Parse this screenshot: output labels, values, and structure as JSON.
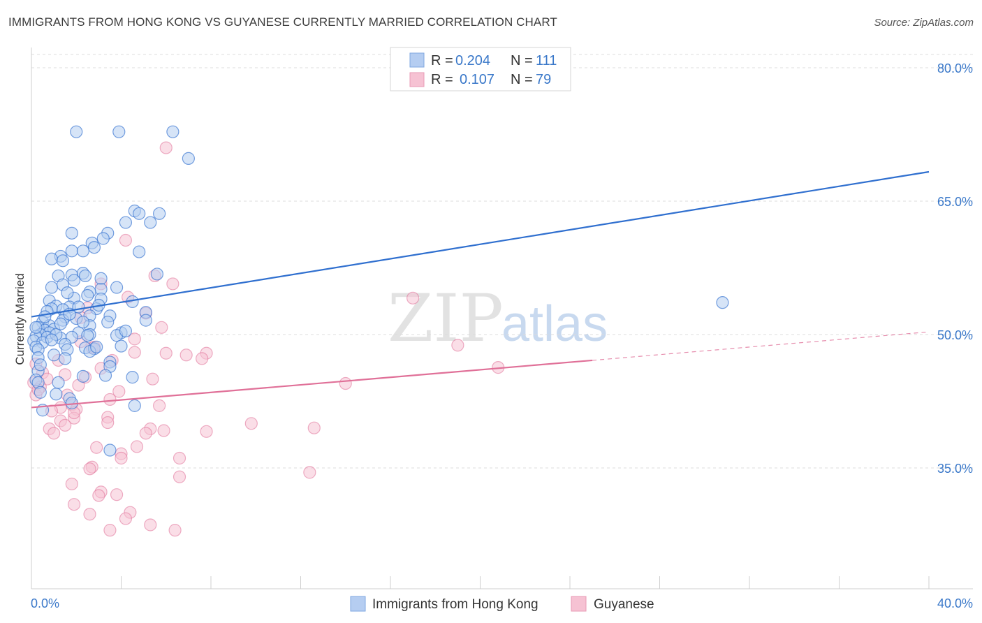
{
  "header": {
    "title": "IMMIGRANTS FROM HONG KONG VS GUYANESE CURRENTLY MARRIED CORRELATION CHART",
    "source": "Source: ZipAtlas.com"
  },
  "watermark": {
    "zip": "ZIP",
    "atlas": "atlas"
  },
  "chart_data": {
    "type": "scatter",
    "ylabel": "Currently Married",
    "xlim": [
      0,
      40
    ],
    "ylim": [
      20,
      80
    ],
    "x_tick_labels": [
      "0.0%",
      "40.0%"
    ],
    "y_ticks": [
      35,
      50,
      65,
      80
    ],
    "y_tick_labels": [
      "35.0%",
      "50.0%",
      "65.0%",
      "80.0%"
    ],
    "grid": true,
    "legend_position": "top-center",
    "colors": {
      "hong_kong": "#2f6fcf",
      "guyanese": "#e07098",
      "hk_fill": "#b5cdf1",
      "guy_fill": "#f6c2d3"
    },
    "stats": [
      {
        "r_label": "R =",
        "r_value": "0.204",
        "n_label": "N =",
        "n_value": "111"
      },
      {
        "r_label": "R =",
        "r_value": "0.107",
        "n_label": "N =",
        "n_value": "79"
      }
    ],
    "series": [
      {
        "name": "Immigrants from Hong Kong",
        "trend": {
          "x": [
            0,
            40
          ],
          "y": [
            52.0,
            68.3
          ]
        },
        "points": [
          [
            2.0,
            72.8
          ],
          [
            3.9,
            72.8
          ],
          [
            6.3,
            72.8
          ],
          [
            7.0,
            69.8
          ],
          [
            4.6,
            63.9
          ],
          [
            4.2,
            62.6
          ],
          [
            5.3,
            62.6
          ],
          [
            4.8,
            63.6
          ],
          [
            5.7,
            63.6
          ],
          [
            1.8,
            61.4
          ],
          [
            3.4,
            61.4
          ],
          [
            3.2,
            60.8
          ],
          [
            2.7,
            60.3
          ],
          [
            2.8,
            59.8
          ],
          [
            1.8,
            59.4
          ],
          [
            2.3,
            59.4
          ],
          [
            4.8,
            59.3
          ],
          [
            1.3,
            58.8
          ],
          [
            0.9,
            58.5
          ],
          [
            1.4,
            58.3
          ],
          [
            2.3,
            56.9
          ],
          [
            1.8,
            56.7
          ],
          [
            1.2,
            56.6
          ],
          [
            5.6,
            56.8
          ],
          [
            2.4,
            56.6
          ],
          [
            3.1,
            56.3
          ],
          [
            1.4,
            55.6
          ],
          [
            0.9,
            55.3
          ],
          [
            3.1,
            55.1
          ],
          [
            2.6,
            54.8
          ],
          [
            2.5,
            54.4
          ],
          [
            1.9,
            54.1
          ],
          [
            3.1,
            54.0
          ],
          [
            0.8,
            53.8
          ],
          [
            4.5,
            53.7
          ],
          [
            1.1,
            53.2
          ],
          [
            1.7,
            53.1
          ],
          [
            0.9,
            52.9
          ],
          [
            1.4,
            52.8
          ],
          [
            2.9,
            52.9
          ],
          [
            3.5,
            52.1
          ],
          [
            2.6,
            52.1
          ],
          [
            5.1,
            52.5
          ],
          [
            0.7,
            52.6
          ],
          [
            1.5,
            52.0
          ],
          [
            2.0,
            51.8
          ],
          [
            1.4,
            51.6
          ],
          [
            5.1,
            51.6
          ],
          [
            3.4,
            51.4
          ],
          [
            0.5,
            51.4
          ],
          [
            0.8,
            51.0
          ],
          [
            2.6,
            51.0
          ],
          [
            0.3,
            50.8
          ],
          [
            0.6,
            50.5
          ],
          [
            1.0,
            50.6
          ],
          [
            0.8,
            50.2
          ],
          [
            2.1,
            50.2
          ],
          [
            0.4,
            50.0
          ],
          [
            2.6,
            50.0
          ],
          [
            4.0,
            50.2
          ],
          [
            0.2,
            49.8
          ],
          [
            0.7,
            49.7
          ],
          [
            1.3,
            49.6
          ],
          [
            1.8,
            49.7
          ],
          [
            3.8,
            49.9
          ],
          [
            0.1,
            49.3
          ],
          [
            0.5,
            49.1
          ],
          [
            1.5,
            48.9
          ],
          [
            2.4,
            48.5
          ],
          [
            2.8,
            48.4
          ],
          [
            4.0,
            48.7
          ],
          [
            0.2,
            48.6
          ],
          [
            0.3,
            48.3
          ],
          [
            1.6,
            48.3
          ],
          [
            2.6,
            48.1
          ],
          [
            1.0,
            47.7
          ],
          [
            0.3,
            47.4
          ],
          [
            1.5,
            47.3
          ],
          [
            3.5,
            46.9
          ],
          [
            3.5,
            46.4
          ],
          [
            0.3,
            45.9
          ],
          [
            2.3,
            45.3
          ],
          [
            3.3,
            45.4
          ],
          [
            4.5,
            45.2
          ],
          [
            0.2,
            44.9
          ],
          [
            0.3,
            44.6
          ],
          [
            1.2,
            44.6
          ],
          [
            0.4,
            43.5
          ],
          [
            1.1,
            43.3
          ],
          [
            1.7,
            42.8
          ],
          [
            1.8,
            42.3
          ],
          [
            4.6,
            42.0
          ],
          [
            0.5,
            41.5
          ],
          [
            3.5,
            37.0
          ],
          [
            30.8,
            53.6
          ],
          [
            0.2,
            50.8
          ],
          [
            1.1,
            50.0
          ],
          [
            2.3,
            51.4
          ],
          [
            2.9,
            48.6
          ],
          [
            0.6,
            52.0
          ],
          [
            1.6,
            54.7
          ],
          [
            0.4,
            46.6
          ],
          [
            2.1,
            53.1
          ],
          [
            4.2,
            50.4
          ],
          [
            1.9,
            56.1
          ],
          [
            3.0,
            53.3
          ],
          [
            0.9,
            49.4
          ],
          [
            1.7,
            52.3
          ],
          [
            2.5,
            49.9
          ],
          [
            1.3,
            51.2
          ],
          [
            3.8,
            55.3
          ]
        ]
      },
      {
        "name": "Guyanese",
        "trend": {
          "x": [
            0,
            25
          ],
          "y": [
            41.8,
            47.1
          ]
        },
        "trend_dashed": {
          "x": [
            25,
            40
          ],
          "y": [
            47.1,
            50.3
          ]
        },
        "points": [
          [
            6.0,
            71.0
          ],
          [
            4.2,
            60.6
          ],
          [
            5.5,
            56.6
          ],
          [
            6.3,
            55.7
          ],
          [
            3.1,
            55.7
          ],
          [
            4.3,
            54.2
          ],
          [
            17.0,
            54.1
          ],
          [
            2.5,
            53.0
          ],
          [
            5.1,
            52.4
          ],
          [
            2.2,
            51.9
          ],
          [
            5.8,
            50.8
          ],
          [
            4.6,
            49.5
          ],
          [
            2.2,
            49.2
          ],
          [
            19.0,
            48.8
          ],
          [
            2.7,
            48.5
          ],
          [
            4.6,
            48.0
          ],
          [
            6.0,
            47.9
          ],
          [
            6.9,
            47.7
          ],
          [
            7.8,
            47.9
          ],
          [
            3.6,
            47.1
          ],
          [
            7.6,
            47.3
          ],
          [
            1.2,
            47.1
          ],
          [
            0.2,
            46.7
          ],
          [
            20.8,
            46.3
          ],
          [
            0.5,
            45.7
          ],
          [
            2.4,
            45.2
          ],
          [
            0.7,
            45.0
          ],
          [
            0.1,
            44.6
          ],
          [
            0.4,
            44.1
          ],
          [
            14.0,
            44.5
          ],
          [
            2.1,
            44.3
          ],
          [
            3.9,
            43.6
          ],
          [
            1.6,
            43.2
          ],
          [
            0.2,
            43.2
          ],
          [
            3.5,
            42.7
          ],
          [
            1.8,
            42.1
          ],
          [
            5.7,
            42.0
          ],
          [
            1.3,
            41.8
          ],
          [
            2.0,
            41.6
          ],
          [
            0.9,
            41.4
          ],
          [
            3.4,
            40.7
          ],
          [
            1.9,
            40.6
          ],
          [
            1.3,
            40.3
          ],
          [
            3.4,
            40.1
          ],
          [
            9.8,
            40.0
          ],
          [
            1.5,
            39.8
          ],
          [
            12.6,
            39.5
          ],
          [
            0.8,
            39.4
          ],
          [
            5.3,
            39.4
          ],
          [
            5.9,
            39.2
          ],
          [
            7.8,
            39.1
          ],
          [
            5.1,
            38.9
          ],
          [
            1.0,
            38.9
          ],
          [
            4.7,
            37.4
          ],
          [
            2.9,
            37.3
          ],
          [
            4.0,
            36.6
          ],
          [
            4.0,
            36.1
          ],
          [
            6.6,
            36.1
          ],
          [
            2.7,
            35.1
          ],
          [
            2.6,
            34.9
          ],
          [
            12.4,
            34.5
          ],
          [
            6.6,
            34.0
          ],
          [
            1.8,
            33.2
          ],
          [
            3.1,
            32.3
          ],
          [
            3.0,
            31.9
          ],
          [
            3.8,
            32.0
          ],
          [
            1.9,
            30.9
          ],
          [
            4.4,
            30.0
          ],
          [
            2.6,
            29.8
          ],
          [
            4.2,
            29.3
          ],
          [
            5.3,
            28.6
          ],
          [
            3.5,
            28.0
          ],
          [
            6.4,
            28.0
          ],
          [
            1.9,
            41.2
          ],
          [
            0.3,
            43.8
          ],
          [
            2.8,
            48.6
          ],
          [
            5.4,
            45.0
          ],
          [
            3.1,
            46.2
          ],
          [
            1.5,
            45.5
          ]
        ]
      }
    ]
  },
  "bottom_legend": [
    {
      "label": "Immigrants from Hong Kong"
    },
    {
      "label": "Guyanese"
    }
  ]
}
